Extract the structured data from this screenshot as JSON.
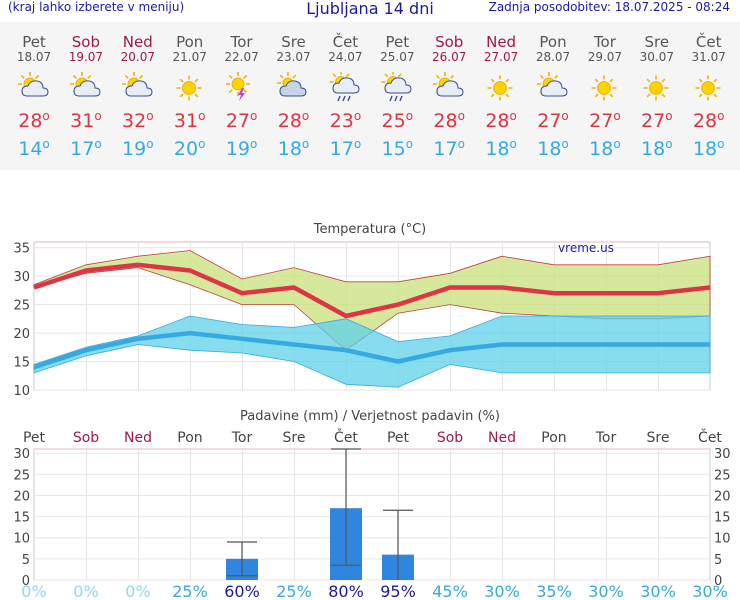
{
  "header": {
    "menu_hint": "(kraj lahko izberete v meniju)",
    "title": "Ljubljana 14 dni",
    "updated": "Zadnja posodobitev: 18.07.2025 - 08:24"
  },
  "days": [
    {
      "name": "Pet",
      "date": "18.07",
      "weekend": false,
      "icon": "sun-cloud-icon",
      "tmax": "28",
      "tmin": "14"
    },
    {
      "name": "Sob",
      "date": "19.07",
      "weekend": true,
      "icon": "sun-cloud-icon",
      "tmax": "31",
      "tmin": "17"
    },
    {
      "name": "Ned",
      "date": "20.07",
      "weekend": true,
      "icon": "sun-cloud-icon",
      "tmax": "32",
      "tmin": "19"
    },
    {
      "name": "Pon",
      "date": "21.07",
      "weekend": false,
      "icon": "sun-icon",
      "tmax": "31",
      "tmin": "20"
    },
    {
      "name": "Tor",
      "date": "22.07",
      "weekend": false,
      "icon": "sun-thunder-icon",
      "tmax": "27",
      "tmin": "19"
    },
    {
      "name": "Sre",
      "date": "23.07",
      "weekend": false,
      "icon": "sun-cloudy-icon",
      "tmax": "28",
      "tmin": "18"
    },
    {
      "name": "Čet",
      "date": "24.07",
      "weekend": false,
      "icon": "sun-rain-icon",
      "tmax": "23",
      "tmin": "17"
    },
    {
      "name": "Pet",
      "date": "25.07",
      "weekend": false,
      "icon": "sun-rain-icon",
      "tmax": "25",
      "tmin": "15"
    },
    {
      "name": "Sob",
      "date": "26.07",
      "weekend": true,
      "icon": "sun-cloud-icon",
      "tmax": "28",
      "tmin": "17"
    },
    {
      "name": "Ned",
      "date": "27.07",
      "weekend": true,
      "icon": "sun-icon",
      "tmax": "28",
      "tmin": "18"
    },
    {
      "name": "Pon",
      "date": "28.07",
      "weekend": false,
      "icon": "sun-cloud-icon",
      "tmax": "27",
      "tmin": "18"
    },
    {
      "name": "Tor",
      "date": "29.07",
      "weekend": false,
      "icon": "sun-icon",
      "tmax": "27",
      "tmin": "18"
    },
    {
      "name": "Sre",
      "date": "30.07",
      "weekend": false,
      "icon": "sun-icon",
      "tmax": "27",
      "tmin": "18"
    },
    {
      "name": "Čet",
      "date": "31.07",
      "weekend": false,
      "icon": "sun-icon",
      "tmax": "28",
      "tmin": "18"
    }
  ],
  "colors": {
    "max": "#dc3545",
    "min": "#36a9e1",
    "weekend": "#a0184d",
    "title_blue": "#1a1aa0",
    "max_band": "#c8e07a",
    "min_band": "#5fd0e8",
    "precip_bar": "#2e86de",
    "prob_light": "#8fd8f0",
    "prob_mid": "#36a9e1",
    "prob_dark": "#1a1aa0"
  },
  "chart_data": [
    {
      "type": "line",
      "title": "Temperatura (°C)",
      "categories": [
        "Pet",
        "Sob",
        "Ned",
        "Pon",
        "Tor",
        "Sre",
        "Čet",
        "Pet",
        "Sob",
        "Ned",
        "Pon",
        "Tor",
        "Sre",
        "Čet"
      ],
      "series": [
        {
          "values": [
            28,
            31,
            32,
            31,
            27,
            28,
            23,
            25,
            28,
            28,
            27,
            27,
            27,
            28
          ]
        },
        {
          "values": [
            14,
            17,
            19,
            20,
            19,
            18,
            17,
            15,
            17,
            18,
            18,
            18,
            18,
            18
          ]
        }
      ],
      "bands": {
        "max_low": [
          28,
          30.5,
          31.5,
          28.5,
          25,
          25,
          17,
          23.5,
          25,
          23.5,
          23,
          22.5,
          22.5,
          23
        ],
        "max_high": [
          28.5,
          32,
          33.5,
          34.5,
          29.5,
          31.5,
          29,
          29,
          30.5,
          33.5,
          32,
          32,
          32,
          33.5
        ],
        "min_low": [
          13,
          16,
          18,
          17,
          16.5,
          15,
          11,
          10.5,
          14.5,
          13,
          13,
          13,
          13,
          13
        ],
        "min_high": [
          14.5,
          17.5,
          19.5,
          23,
          21.5,
          21,
          22.5,
          18.5,
          19.5,
          23,
          23,
          23,
          23,
          23
        ]
      },
      "ylim": [
        10,
        36
      ],
      "yticks": [
        10,
        15,
        20,
        25,
        30,
        35
      ],
      "watermark": "vreme.us",
      "grid": true
    },
    {
      "type": "bar",
      "title": "Padavine (mm) / Verjetnost padavin (%)",
      "categories": [
        "Pet",
        "Sob",
        "Ned",
        "Pon",
        "Tor",
        "Sre",
        "Čet",
        "Pet",
        "Sob",
        "Ned",
        "Pon",
        "Tor",
        "Sre",
        "Čet"
      ],
      "values": [
        0,
        0,
        0,
        0,
        5,
        0,
        17,
        6,
        0,
        0,
        0,
        0,
        0,
        0
      ],
      "err_low": [
        null,
        null,
        null,
        null,
        1,
        null,
        3.5,
        null,
        null,
        null,
        null,
        null,
        null,
        null
      ],
      "err_high": [
        null,
        null,
        null,
        null,
        9,
        null,
        31,
        16.5,
        null,
        null,
        null,
        null,
        null,
        null
      ],
      "probability": [
        "0%",
        "0%",
        "0%",
        "25%",
        "60%",
        "25%",
        "80%",
        "95%",
        "45%",
        "30%",
        "35%",
        "30%",
        "30%",
        "30%"
      ],
      "ylim": [
        0,
        31
      ],
      "yticks": [
        0,
        5,
        10,
        15,
        20,
        25,
        30
      ],
      "grid": true
    }
  ]
}
